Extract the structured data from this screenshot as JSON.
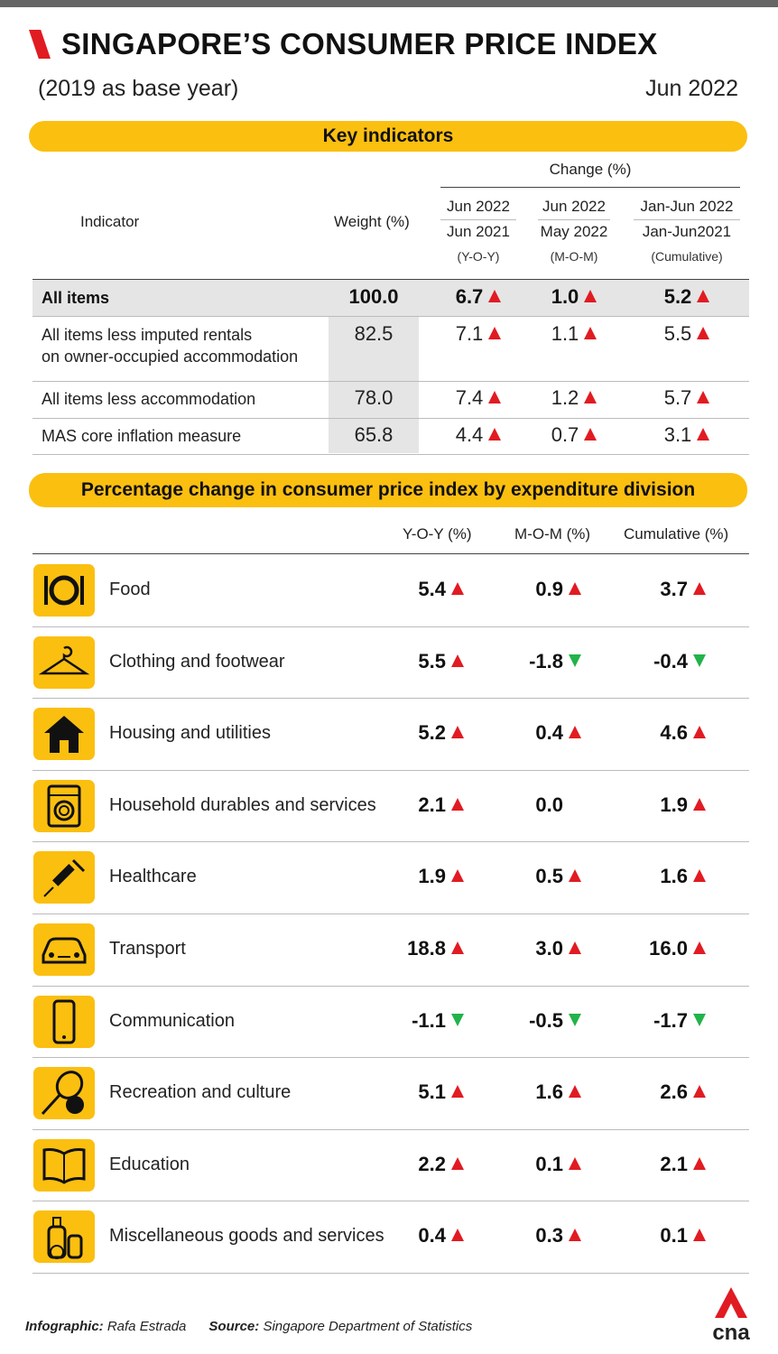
{
  "header": {
    "title": "SINGAPORE’S CONSUMER PRICE INDEX",
    "subtitle": "(2019 as base year)",
    "date": "Jun 2022"
  },
  "key_indicators": {
    "heading": "Key indicators",
    "col_indicator": "Indicator",
    "col_weight": "Weight (%)",
    "col_change": "Change (%)",
    "cols": [
      {
        "top": "Jun 2022",
        "mid": "Jun 2021",
        "sub": "(Y-O-Y)"
      },
      {
        "top": "Jun 2022",
        "mid": "May 2022",
        "sub": "(M-O-M)"
      },
      {
        "top": "Jan-Jun 2022",
        "mid": "Jan-Jun2021",
        "sub": "(Cumulative)"
      }
    ],
    "rows": [
      {
        "label": "All items",
        "weight": "100.0",
        "yoy": "6.7",
        "mom": "1.0",
        "cum": "5.2",
        "dir": [
          "up",
          "up",
          "up"
        ]
      },
      {
        "label": "All items less imputed rentals",
        "label2": "on owner-occupied accommodation",
        "weight": "82.5",
        "yoy": "7.1",
        "mom": "1.1",
        "cum": "5.5",
        "dir": [
          "up",
          "up",
          "up"
        ]
      },
      {
        "label": "All items less accommodation",
        "weight": "78.0",
        "yoy": "7.4",
        "mom": "1.2",
        "cum": "5.7",
        "dir": [
          "up",
          "up",
          "up"
        ]
      },
      {
        "label": "MAS core inflation measure",
        "weight": "65.8",
        "yoy": "4.4",
        "mom": "0.7",
        "cum": "3.1",
        "dir": [
          "up",
          "up",
          "up"
        ]
      }
    ]
  },
  "divisions": {
    "heading": "Percentage change in consumer price index by expenditure division",
    "col_yoy": "Y-O-Y (%)",
    "col_mom": "M-O-M (%)",
    "col_cum": "Cumulative (%)",
    "rows": [
      {
        "icon": "food-plate-icon",
        "label": "Food",
        "yoy": "5.4",
        "mom": "0.9",
        "cum": "3.7",
        "dir": [
          "up",
          "up",
          "up"
        ]
      },
      {
        "icon": "hanger-icon",
        "label": "Clothing and footwear",
        "yoy": "5.5",
        "mom": "-1.8",
        "cum": "-0.4",
        "dir": [
          "up",
          "down",
          "down"
        ]
      },
      {
        "icon": "house-icon",
        "label": "Housing and utilities",
        "yoy": "5.2",
        "mom": "0.4",
        "cum": "4.6",
        "dir": [
          "up",
          "up",
          "up"
        ]
      },
      {
        "icon": "washing-machine-icon",
        "label": "Household durables and services",
        "yoy": "2.1",
        "mom": "0.0",
        "cum": "1.9",
        "dir": [
          "up",
          "none",
          "up"
        ]
      },
      {
        "icon": "syringe-icon",
        "label": "Healthcare",
        "yoy": "1.9",
        "mom": "0.5",
        "cum": "1.6",
        "dir": [
          "up",
          "up",
          "up"
        ]
      },
      {
        "icon": "car-icon",
        "label": "Transport",
        "yoy": "18.8",
        "mom": "3.0",
        "cum": "16.0",
        "dir": [
          "up",
          "up",
          "up"
        ]
      },
      {
        "icon": "mobile-phone-icon",
        "label": "Communication",
        "yoy": "-1.1",
        "mom": "-0.5",
        "cum": "-1.7",
        "dir": [
          "down",
          "down",
          "down"
        ]
      },
      {
        "icon": "racket-ball-icon",
        "label": "Recreation and culture",
        "yoy": "5.1",
        "mom": "1.6",
        "cum": "2.6",
        "dir": [
          "up",
          "up",
          "up"
        ]
      },
      {
        "icon": "open-book-icon",
        "label": "Education",
        "yoy": "2.2",
        "mom": "0.1",
        "cum": "2.1",
        "dir": [
          "up",
          "up",
          "up"
        ]
      },
      {
        "icon": "bottles-icon",
        "label": "Miscellaneous goods and services",
        "yoy": "0.4",
        "mom": "0.3",
        "cum": "0.1",
        "dir": [
          "up",
          "up",
          "up"
        ]
      }
    ]
  },
  "footer": {
    "credit_label": "Infographic:",
    "credit_name": "Rafa Estrada",
    "source_label": "Source:",
    "source_name": "Singapore Department of Statistics"
  },
  "logo": {
    "text": "cna"
  },
  "colors": {
    "accent": "#fbbf10",
    "up": "#e11b22",
    "down": "#22b34a"
  }
}
